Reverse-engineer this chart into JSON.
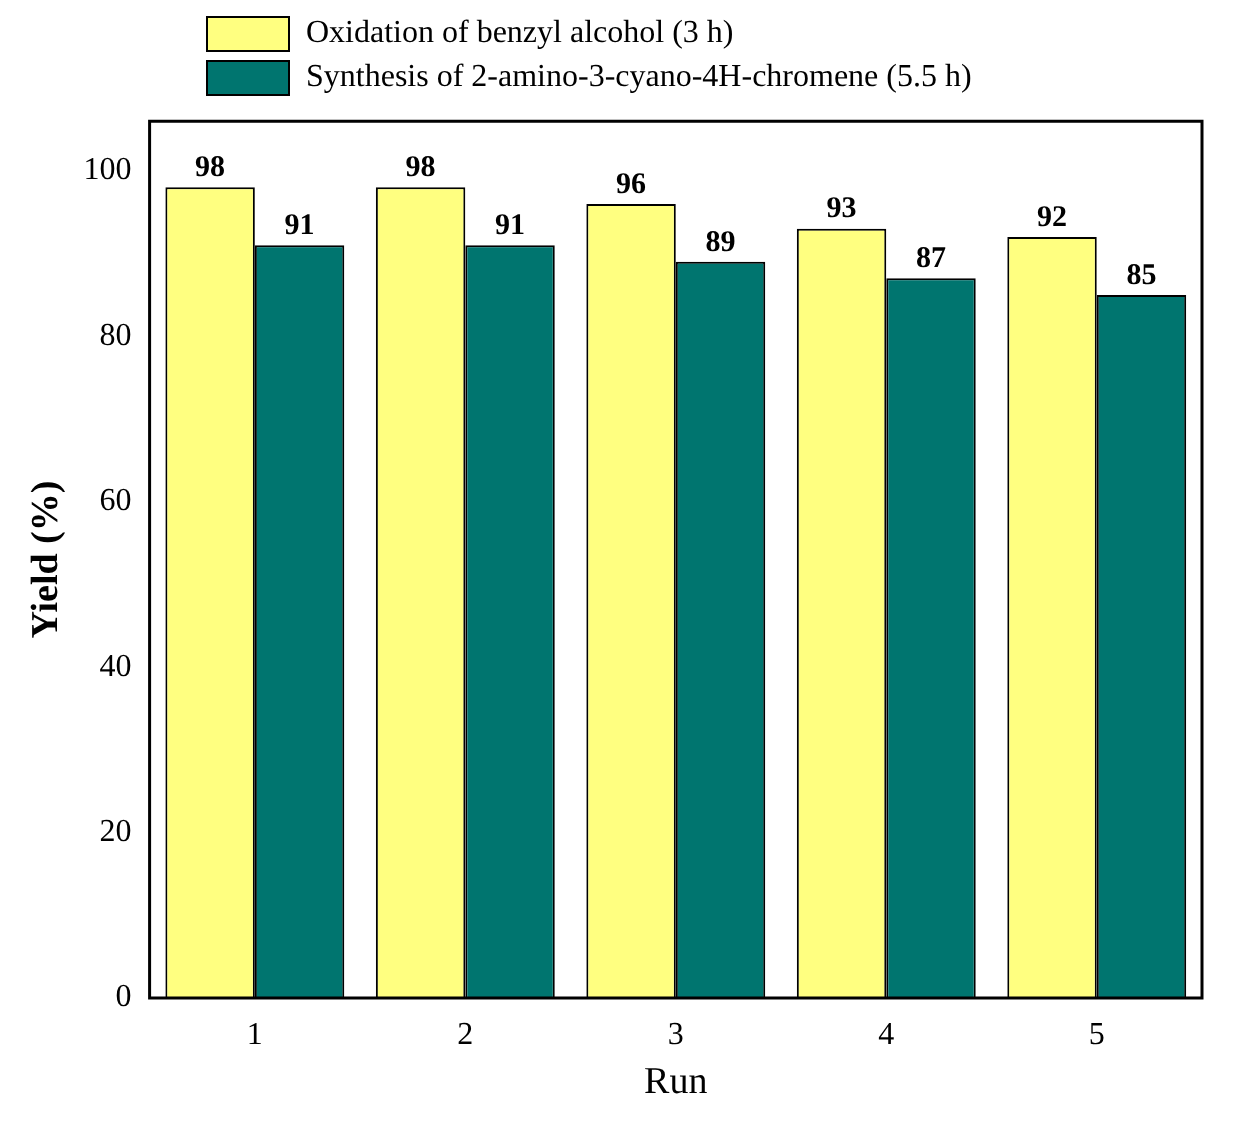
{
  "chart_data": {
    "type": "bar",
    "xlabel": "Run",
    "ylabel": "Yield (%)",
    "categories": [
      "1",
      "2",
      "3",
      "4",
      "5"
    ],
    "series": [
      {
        "name": "Oxidation of benzyl alcohol (3 h)",
        "color": "#ffff80",
        "values": [
          98,
          98,
          96,
          93,
          92
        ]
      },
      {
        "name": "Synthesis of 2-amino-3-cyano-4H-chromene (5.5 h)",
        "color": "#00756f",
        "values": [
          91,
          91,
          89,
          87,
          85
        ]
      }
    ],
    "ylim": [
      0,
      106
    ],
    "yticks": [
      0,
      20,
      40,
      60,
      80,
      100
    ],
    "grid": false,
    "legend": "top",
    "data_labels": true
  }
}
